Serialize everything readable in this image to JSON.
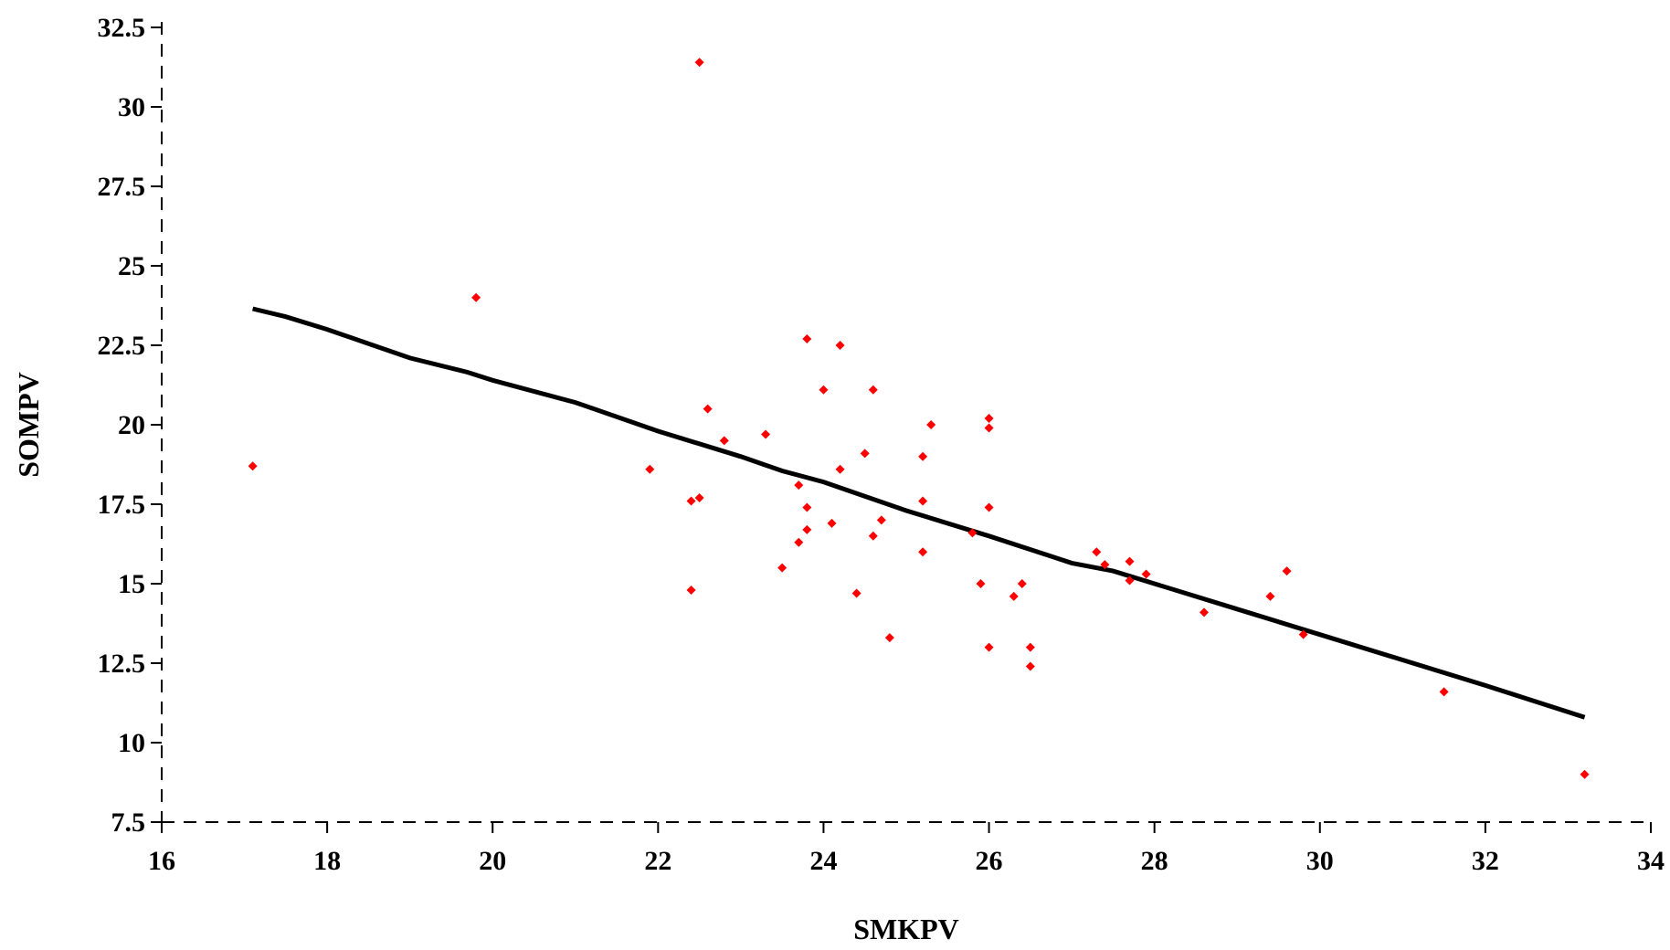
{
  "chart_data": {
    "type": "scatter",
    "title": "",
    "xlabel": "SMKPV",
    "ylabel": "SOMPV",
    "xlim": [
      16,
      34
    ],
    "ylim": [
      7.5,
      32.5
    ],
    "x_ticks": [
      "16",
      "18",
      "20",
      "22",
      "24",
      "26",
      "28",
      "30",
      "32",
      "34"
    ],
    "y_ticks": [
      "7.5",
      "10",
      "12.5",
      "15",
      "17.5",
      "20",
      "22.5",
      "25",
      "27.5",
      "30",
      "32.5"
    ],
    "grid": false,
    "legend": "none",
    "point_color": "#ff0000",
    "trend_color": "#000000",
    "points": [
      {
        "x": 17.1,
        "y": 18.7
      },
      {
        "x": 19.8,
        "y": 24.0
      },
      {
        "x": 21.9,
        "y": 18.6
      },
      {
        "x": 22.4,
        "y": 17.6
      },
      {
        "x": 22.5,
        "y": 17.7
      },
      {
        "x": 22.4,
        "y": 14.8
      },
      {
        "x": 22.5,
        "y": 31.4
      },
      {
        "x": 22.6,
        "y": 20.5
      },
      {
        "x": 22.8,
        "y": 19.5
      },
      {
        "x": 23.3,
        "y": 19.7
      },
      {
        "x": 23.5,
        "y": 15.5
      },
      {
        "x": 23.7,
        "y": 18.1
      },
      {
        "x": 23.7,
        "y": 16.3
      },
      {
        "x": 23.8,
        "y": 22.7
      },
      {
        "x": 23.8,
        "y": 17.4
      },
      {
        "x": 23.8,
        "y": 16.7
      },
      {
        "x": 24.0,
        "y": 21.1
      },
      {
        "x": 24.1,
        "y": 16.9
      },
      {
        "x": 24.2,
        "y": 22.5
      },
      {
        "x": 24.2,
        "y": 18.6
      },
      {
        "x": 24.4,
        "y": 14.7
      },
      {
        "x": 24.5,
        "y": 19.1
      },
      {
        "x": 24.6,
        "y": 21.1
      },
      {
        "x": 24.6,
        "y": 16.5
      },
      {
        "x": 24.7,
        "y": 17.0
      },
      {
        "x": 24.8,
        "y": 13.3
      },
      {
        "x": 25.2,
        "y": 19.0
      },
      {
        "x": 25.2,
        "y": 17.6
      },
      {
        "x": 25.2,
        "y": 16.0
      },
      {
        "x": 25.3,
        "y": 20.0
      },
      {
        "x": 25.8,
        "y": 16.6
      },
      {
        "x": 25.9,
        "y": 15.0
      },
      {
        "x": 26.0,
        "y": 20.2
      },
      {
        "x": 26.0,
        "y": 19.9
      },
      {
        "x": 26.0,
        "y": 17.4
      },
      {
        "x": 26.0,
        "y": 13.0
      },
      {
        "x": 26.3,
        "y": 14.6
      },
      {
        "x": 26.4,
        "y": 15.0
      },
      {
        "x": 26.5,
        "y": 13.0
      },
      {
        "x": 26.5,
        "y": 12.4
      },
      {
        "x": 27.3,
        "y": 16.0
      },
      {
        "x": 27.4,
        "y": 15.6
      },
      {
        "x": 27.7,
        "y": 15.7
      },
      {
        "x": 27.7,
        "y": 15.1
      },
      {
        "x": 27.9,
        "y": 15.3
      },
      {
        "x": 28.6,
        "y": 14.1
      },
      {
        "x": 29.4,
        "y": 14.6
      },
      {
        "x": 29.6,
        "y": 15.4
      },
      {
        "x": 29.8,
        "y": 13.4
      },
      {
        "x": 31.5,
        "y": 11.6
      },
      {
        "x": 33.2,
        "y": 9.0
      }
    ],
    "trend_line": [
      {
        "x": 17.1,
        "y": 23.65
      },
      {
        "x": 17.5,
        "y": 23.4
      },
      {
        "x": 18.0,
        "y": 23.0
      },
      {
        "x": 19.0,
        "y": 22.1
      },
      {
        "x": 19.7,
        "y": 21.65
      },
      {
        "x": 20.0,
        "y": 21.4
      },
      {
        "x": 21.0,
        "y": 20.7
      },
      {
        "x": 22.0,
        "y": 19.8
      },
      {
        "x": 23.0,
        "y": 19.0
      },
      {
        "x": 23.5,
        "y": 18.55
      },
      {
        "x": 24.0,
        "y": 18.2
      },
      {
        "x": 25.0,
        "y": 17.3
      },
      {
        "x": 26.0,
        "y": 16.5
      },
      {
        "x": 27.0,
        "y": 15.65
      },
      {
        "x": 27.5,
        "y": 15.4
      },
      {
        "x": 28.0,
        "y": 15.0
      },
      {
        "x": 29.0,
        "y": 14.2
      },
      {
        "x": 30.0,
        "y": 13.4
      },
      {
        "x": 31.0,
        "y": 12.6
      },
      {
        "x": 32.0,
        "y": 11.8
      },
      {
        "x": 33.2,
        "y": 10.8
      }
    ]
  }
}
